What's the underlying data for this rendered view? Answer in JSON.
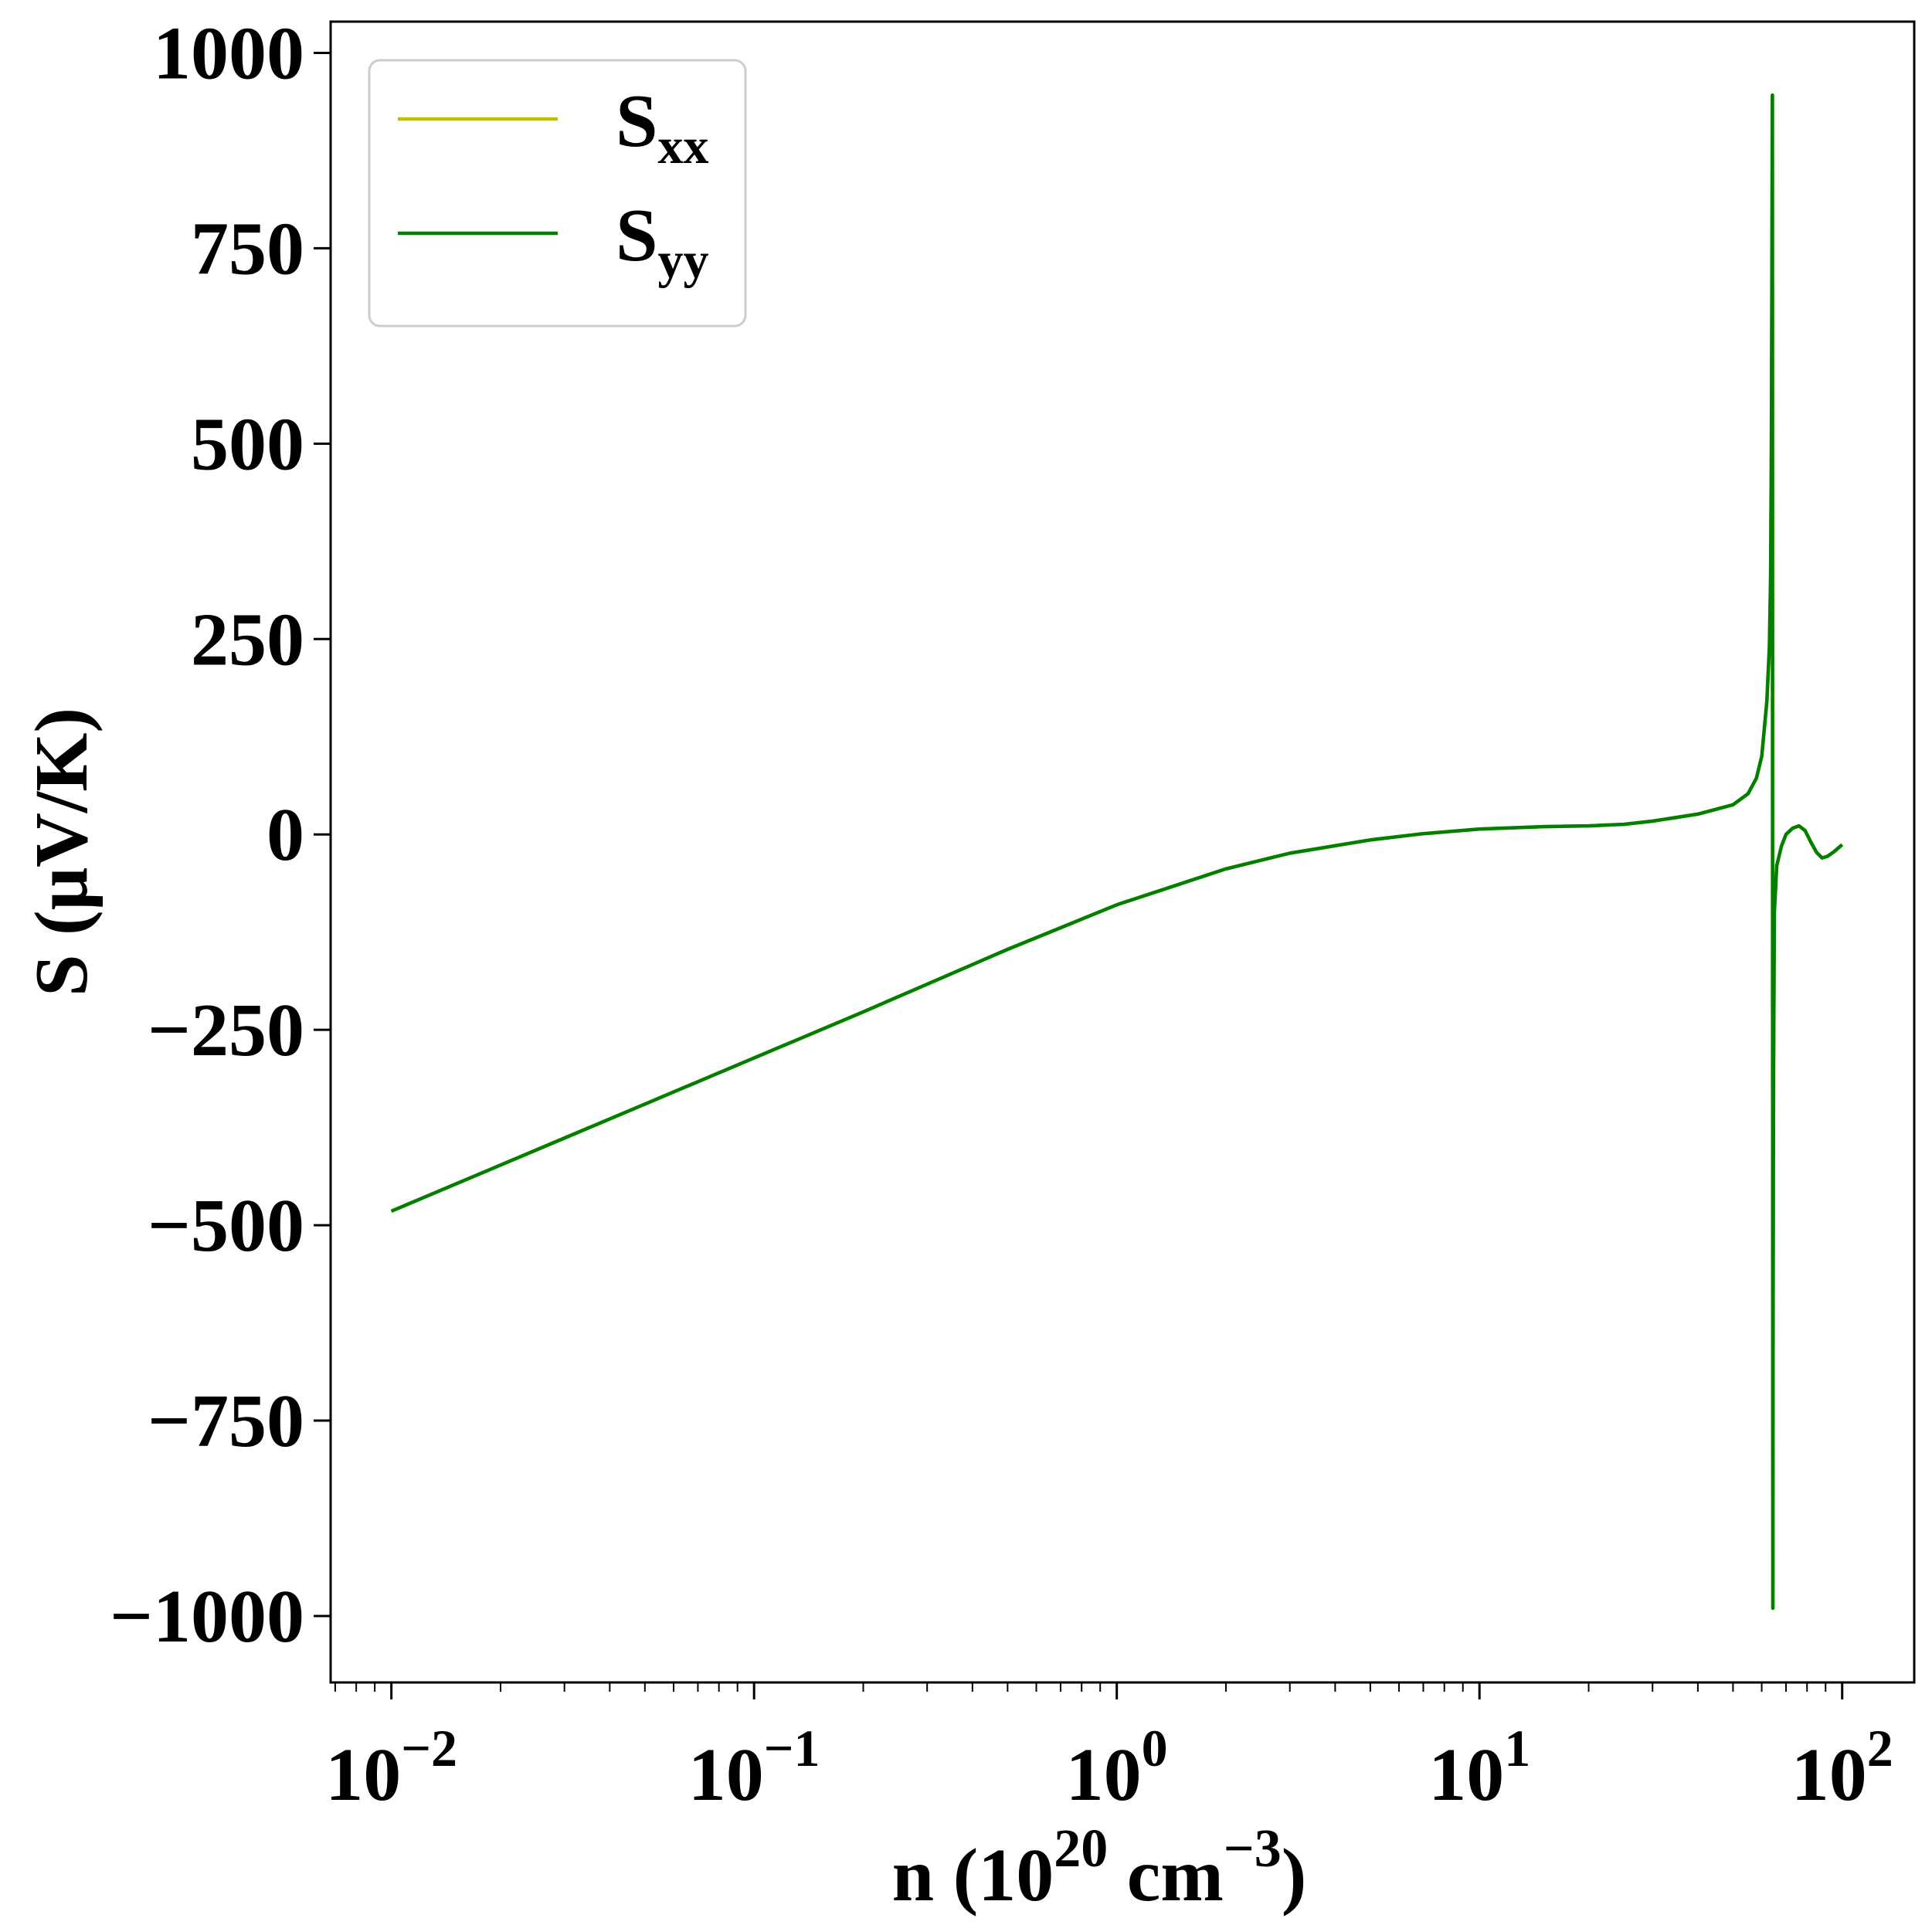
{
  "chart_data": {
    "type": "line",
    "title": "",
    "xlabel": {
      "base": "n (10",
      "sup1": "20",
      "mid": " cm",
      "sup2": "−3",
      "end": ")"
    },
    "ylabel": "S (μV/K)",
    "x_scale": "log",
    "xlim": [
      0.0068,
      158
    ],
    "ylim": [
      -1085,
      1040
    ],
    "x_ticks": [
      {
        "value": 0.01,
        "base": "10",
        "exp": "−2"
      },
      {
        "value": 0.1,
        "base": "10",
        "exp": "−1"
      },
      {
        "value": 1,
        "base": "10",
        "exp": "0"
      },
      {
        "value": 10,
        "base": "10",
        "exp": "1"
      },
      {
        "value": 100,
        "base": "10",
        "exp": "2"
      }
    ],
    "y_ticks": [
      {
        "value": 1000,
        "label": "1000"
      },
      {
        "value": 750,
        "label": "750"
      },
      {
        "value": 500,
        "label": "500"
      },
      {
        "value": 250,
        "label": "250"
      },
      {
        "value": 0,
        "label": "0"
      },
      {
        "value": -250,
        "label": "−250"
      },
      {
        "value": -500,
        "label": "−500"
      },
      {
        "value": -750,
        "label": "−750"
      },
      {
        "value": -1000,
        "label": "−1000"
      }
    ],
    "grid": false,
    "legend_position": "top-left",
    "series": [
      {
        "name": "xx",
        "label_base": "S",
        "label_sub": "xx",
        "color": "#bfbf00",
        "points": [
          [
            0.01,
            -482
          ],
          [
            0.02,
            -423
          ],
          [
            0.05,
            -345
          ],
          [
            0.1,
            -286
          ],
          [
            0.2,
            -227
          ],
          [
            0.5,
            -147
          ],
          [
            1,
            -90
          ],
          [
            2,
            -44
          ],
          [
            3,
            -24
          ],
          [
            5,
            -7
          ],
          [
            7,
            1
          ],
          [
            10,
            7
          ],
          [
            15,
            10
          ],
          [
            20,
            11
          ],
          [
            25,
            13
          ],
          [
            30,
            17
          ],
          [
            40,
            26
          ],
          [
            50,
            38
          ],
          [
            55,
            52
          ],
          [
            58,
            72
          ],
          [
            60,
            100
          ],
          [
            62,
            170
          ],
          [
            63,
            240
          ],
          [
            63.5,
            330
          ],
          [
            63.8,
            500
          ],
          [
            64,
            700
          ],
          [
            64.2,
            946
          ],
          [
            64.3,
            -300
          ],
          [
            64.4,
            -990
          ],
          [
            64.5,
            -600
          ],
          [
            64.7,
            -300
          ],
          [
            65,
            -100
          ],
          [
            66,
            -40
          ],
          [
            68,
            -15
          ],
          [
            70,
            0
          ],
          [
            73,
            8
          ],
          [
            76,
            11
          ],
          [
            79,
            5
          ],
          [
            82,
            -10
          ],
          [
            85,
            -23
          ],
          [
            88,
            -30
          ],
          [
            91,
            -28
          ],
          [
            95,
            -22
          ],
          [
            100,
            -13
          ]
        ]
      },
      {
        "name": "yy",
        "label_base": "S",
        "label_sub": "yy",
        "color": "#007f00",
        "points": [
          [
            0.01,
            -482
          ],
          [
            0.02,
            -423
          ],
          [
            0.05,
            -345
          ],
          [
            0.1,
            -286
          ],
          [
            0.2,
            -227
          ],
          [
            0.5,
            -147
          ],
          [
            1,
            -90
          ],
          [
            2,
            -44
          ],
          [
            3,
            -24
          ],
          [
            5,
            -7
          ],
          [
            7,
            1
          ],
          [
            10,
            7
          ],
          [
            15,
            10
          ],
          [
            20,
            11
          ],
          [
            25,
            13
          ],
          [
            30,
            17
          ],
          [
            40,
            26
          ],
          [
            50,
            38
          ],
          [
            55,
            52
          ],
          [
            58,
            72
          ],
          [
            60,
            100
          ],
          [
            62,
            170
          ],
          [
            63,
            240
          ],
          [
            63.5,
            330
          ],
          [
            63.8,
            500
          ],
          [
            64,
            700
          ],
          [
            64.2,
            946
          ],
          [
            64.3,
            -300
          ],
          [
            64.4,
            -990
          ],
          [
            64.5,
            -600
          ],
          [
            64.7,
            -300
          ],
          [
            65,
            -100
          ],
          [
            66,
            -40
          ],
          [
            68,
            -15
          ],
          [
            70,
            0
          ],
          [
            73,
            8
          ],
          [
            76,
            11
          ],
          [
            79,
            5
          ],
          [
            82,
            -10
          ],
          [
            85,
            -23
          ],
          [
            88,
            -30
          ],
          [
            91,
            -28
          ],
          [
            95,
            -22
          ],
          [
            100,
            -13
          ]
        ]
      }
    ]
  }
}
